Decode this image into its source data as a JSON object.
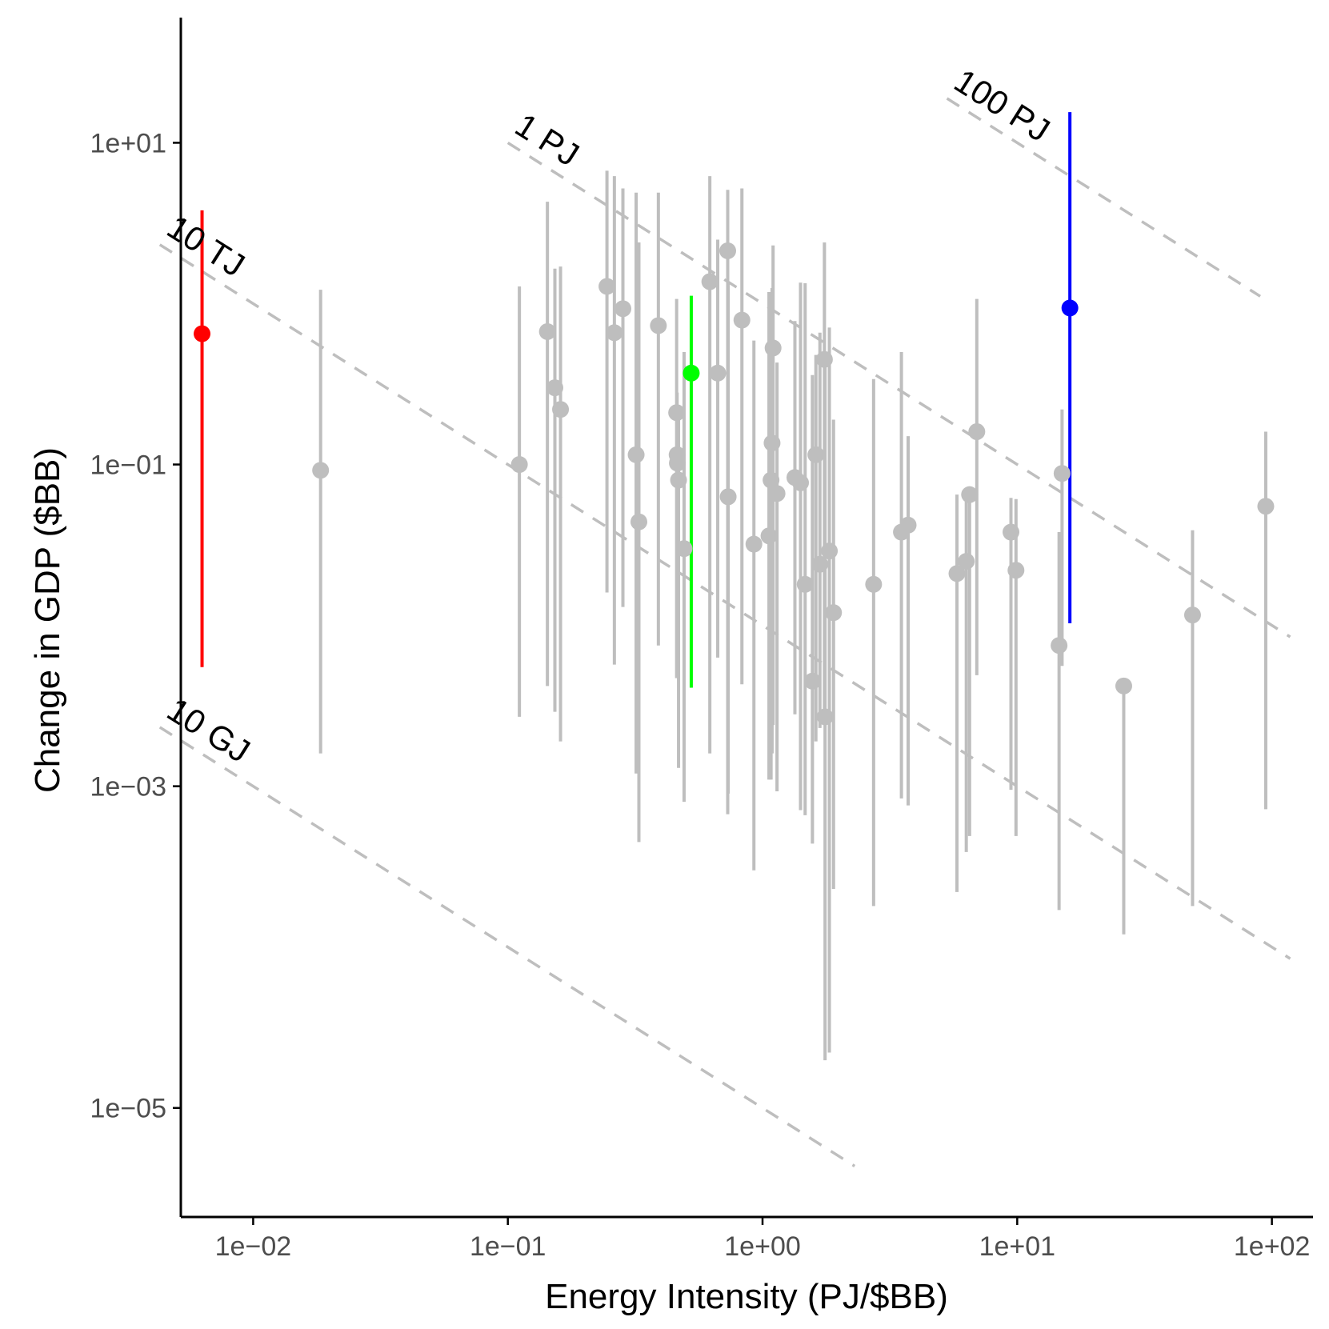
{
  "chart_data": {
    "type": "scatter",
    "title": "",
    "xlabel": "Energy Intensity (PJ/$BB)",
    "ylabel": "Change in GDP ($BB)",
    "xscale": "log10",
    "yscale": "log10",
    "xlim": [
      0.0052,
      145
    ],
    "ylim": [
      2.1e-06,
      60
    ],
    "xticks": [
      {
        "value": 0.01,
        "label": "1e−02"
      },
      {
        "value": 0.1,
        "label": "1e−01"
      },
      {
        "value": 1,
        "label": "1e+00"
      },
      {
        "value": 10,
        "label": "1e+01"
      },
      {
        "value": 100,
        "label": "1e+02"
      }
    ],
    "yticks": [
      {
        "value": 1e-05,
        "label": "1e−05"
      },
      {
        "value": 0.001,
        "label": "1e−03"
      },
      {
        "value": 0.1,
        "label": "1e−01"
      },
      {
        "value": 10,
        "label": "1e+01"
      }
    ],
    "grid": false,
    "colors": {
      "gray": "#bebebe",
      "red": "#ff0000",
      "green": "#00ff00",
      "blue": "#0000ff",
      "reference_line": "#bebebe",
      "axis": "#000000"
    },
    "reference_lines": [
      {
        "label": "10 GJ",
        "energy_pj": 1e-05,
        "x_range": [
          0.0043,
          2.3
        ]
      },
      {
        "label": "10 TJ",
        "energy_pj": 0.01,
        "x_range": [
          0.0043,
          118
        ]
      },
      {
        "label": "1 PJ",
        "energy_pj": 1,
        "x_range": [
          0.1,
          118
        ]
      },
      {
        "label": "100 PJ",
        "energy_pj": 100,
        "x_range": [
          5.3,
          90
        ]
      }
    ],
    "points": [
      {
        "x": 0.0063,
        "y": 0.65,
        "low": 0.0055,
        "high": 3.8,
        "color": "red"
      },
      {
        "x": 0.0184,
        "y": 0.092,
        "low": 0.0016,
        "high": 1.22,
        "color": "gray"
      },
      {
        "x": 0.111,
        "y": 0.1,
        "low": 0.0027,
        "high": 1.28,
        "color": "gray"
      },
      {
        "x": 0.143,
        "y": 0.67,
        "low": 0.0042,
        "high": 4.3,
        "color": "gray"
      },
      {
        "x": 0.153,
        "y": 0.3,
        "low": 0.0029,
        "high": 1.65,
        "color": "gray"
      },
      {
        "x": 0.161,
        "y": 0.22,
        "low": 0.0019,
        "high": 1.7,
        "color": "gray"
      },
      {
        "x": 0.245,
        "y": 1.28,
        "low": 0.016,
        "high": 6.7,
        "color": "gray"
      },
      {
        "x": 0.262,
        "y": 0.66,
        "low": 0.0057,
        "high": 6.2,
        "color": "gray"
      },
      {
        "x": 0.283,
        "y": 0.93,
        "low": 0.013,
        "high": 5.2,
        "color": "gray"
      },
      {
        "x": 0.319,
        "y": 0.115,
        "low": 0.0012,
        "high": 4.9,
        "color": "gray"
      },
      {
        "x": 0.327,
        "y": 0.044,
        "low": 0.00045,
        "high": 2.4,
        "color": "gray"
      },
      {
        "x": 0.39,
        "y": 0.73,
        "low": 0.0075,
        "high": 4.9,
        "color": "gray"
      },
      {
        "x": 0.46,
        "y": 0.21,
        "low": 0.0047,
        "high": 1.07,
        "color": "gray"
      },
      {
        "x": 0.462,
        "y": 0.115,
        "low": 0.0049,
        "high": 0.28,
        "color": "gray"
      },
      {
        "x": 0.463,
        "y": 0.102,
        "low": 0.0052,
        "high": 0.15,
        "color": "gray"
      },
      {
        "x": 0.468,
        "y": 0.08,
        "low": 0.0013,
        "high": 0.23,
        "color": "gray"
      },
      {
        "x": 0.492,
        "y": 0.03,
        "low": 0.0008,
        "high": 0.5,
        "color": "gray"
      },
      {
        "x": 0.525,
        "y": 0.37,
        "low": 0.0041,
        "high": 1.12,
        "color": "green"
      },
      {
        "x": 0.621,
        "y": 1.37,
        "low": 0.0016,
        "high": 6.2,
        "color": "gray"
      },
      {
        "x": 0.667,
        "y": 0.37,
        "low": 0.0063,
        "high": 2.5,
        "color": "gray"
      },
      {
        "x": 0.73,
        "y": 2.13,
        "low": 0.00067,
        "high": 5.1,
        "color": "gray"
      },
      {
        "x": 0.733,
        "y": 0.063,
        "low": 0.0009,
        "high": 1.35,
        "color": "gray"
      },
      {
        "x": 0.83,
        "y": 0.79,
        "low": 0.0043,
        "high": 5.2,
        "color": "gray"
      },
      {
        "x": 0.925,
        "y": 0.032,
        "low": 0.0003,
        "high": 0.59,
        "color": "gray"
      },
      {
        "x": 1.06,
        "y": 0.036,
        "low": 0.0011,
        "high": 1.18,
        "color": "gray"
      },
      {
        "x": 1.08,
        "y": 0.08,
        "low": 0.0011,
        "high": 1.15,
        "color": "gray"
      },
      {
        "x": 1.09,
        "y": 0.136,
        "low": 0.0016,
        "high": 1.25,
        "color": "gray"
      },
      {
        "x": 1.1,
        "y": 0.53,
        "low": 0.0024,
        "high": 2.3,
        "color": "gray"
      },
      {
        "x": 1.14,
        "y": 0.066,
        "low": 0.00093,
        "high": 0.43,
        "color": "gray"
      },
      {
        "x": 1.34,
        "y": 0.083,
        "low": 0.0028,
        "high": 0.78,
        "color": "gray"
      },
      {
        "x": 1.41,
        "y": 0.077,
        "low": 0.00071,
        "high": 1.35,
        "color": "gray"
      },
      {
        "x": 1.47,
        "y": 0.018,
        "low": 0.00066,
        "high": 1.34,
        "color": "gray"
      },
      {
        "x": 1.57,
        "y": 0.0045,
        "low": 0.00044,
        "high": 0.36,
        "color": "gray"
      },
      {
        "x": 1.62,
        "y": 0.115,
        "low": 0.0019,
        "high": 0.48,
        "color": "gray"
      },
      {
        "x": 1.68,
        "y": 0.024,
        "low": 0.0023,
        "high": 0.66,
        "color": "gray"
      },
      {
        "x": 1.75,
        "y": 0.45,
        "low": 0.0029,
        "high": 2.4,
        "color": "gray"
      },
      {
        "x": 1.76,
        "y": 0.0027,
        "low": 1.98e-05,
        "high": 0.49,
        "color": "gray"
      },
      {
        "x": 1.83,
        "y": 0.029,
        "low": 2.21e-05,
        "high": 0.71,
        "color": "gray"
      },
      {
        "x": 1.9,
        "y": 0.012,
        "low": 0.00023,
        "high": 0.19,
        "color": "gray"
      },
      {
        "x": 2.73,
        "y": 0.018,
        "low": 0.00018,
        "high": 0.34,
        "color": "gray"
      },
      {
        "x": 3.51,
        "y": 0.038,
        "low": 0.00084,
        "high": 0.5,
        "color": "gray"
      },
      {
        "x": 3.73,
        "y": 0.042,
        "low": 0.00076,
        "high": 0.15,
        "color": "gray"
      },
      {
        "x": 5.8,
        "y": 0.021,
        "low": 0.00022,
        "high": 0.065,
        "color": "gray"
      },
      {
        "x": 6.31,
        "y": 0.025,
        "low": 0.00039,
        "high": 0.063,
        "color": "gray"
      },
      {
        "x": 6.5,
        "y": 0.065,
        "low": 0.00049,
        "high": 0.063,
        "color": "gray"
      },
      {
        "x": 6.94,
        "y": 0.16,
        "low": 0.0049,
        "high": 1.07,
        "color": "gray"
      },
      {
        "x": 9.45,
        "y": 0.038,
        "low": 0.00095,
        "high": 0.062,
        "color": "gray"
      },
      {
        "x": 9.89,
        "y": 0.022,
        "low": 0.00049,
        "high": 0.061,
        "color": "gray"
      },
      {
        "x": 14.6,
        "y": 0.0075,
        "low": 0.00017,
        "high": 0.038,
        "color": "gray"
      },
      {
        "x": 15,
        "y": 0.088,
        "low": 0.0056,
        "high": 0.22,
        "color": "gray"
      },
      {
        "x": 16.1,
        "y": 0.94,
        "low": 0.0103,
        "high": 15.5,
        "color": "blue"
      },
      {
        "x": 26.2,
        "y": 0.0042,
        "low": 0.00012,
        "high": 0.0041,
        "color": "gray"
      },
      {
        "x": 48.8,
        "y": 0.0116,
        "low": 0.00018,
        "high": 0.039,
        "color": "gray"
      },
      {
        "x": 94.6,
        "y": 0.055,
        "low": 0.00072,
        "high": 0.16,
        "color": "gray"
      }
    ]
  }
}
